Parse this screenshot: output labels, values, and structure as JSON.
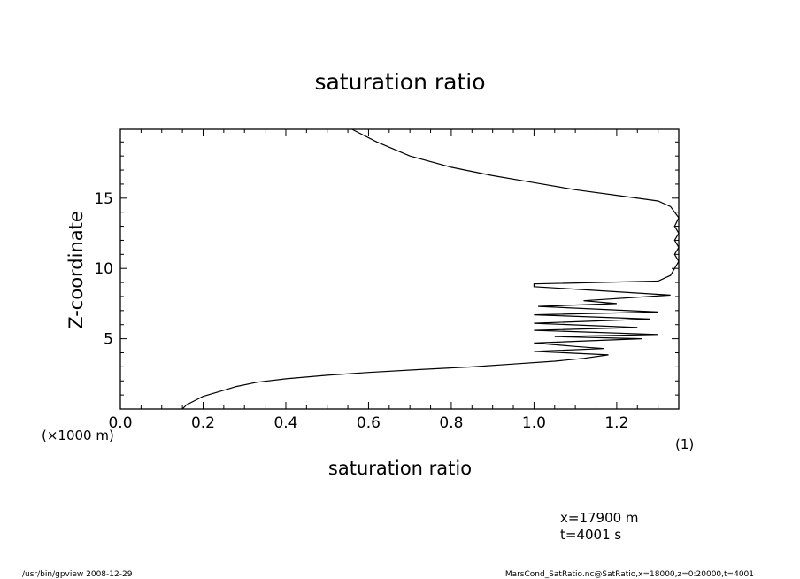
{
  "chart_data": {
    "type": "line",
    "title": "saturation ratio",
    "xlabel": "saturation ratio",
    "ylabel": "Z-coordinate",
    "x_unit_label": "(1)",
    "y_unit_label": "(×1000 m)",
    "xlim": [
      0.0,
      1.35
    ],
    "ylim": [
      0.0,
      19.9
    ],
    "x_ticks": [
      0.0,
      0.2,
      0.4,
      0.6,
      0.8,
      1.0,
      1.2
    ],
    "x_tick_labels": [
      "0.0",
      "0.2",
      "0.4",
      "0.6",
      "0.8",
      "1.0",
      "1.2"
    ],
    "y_ticks": [
      5,
      10,
      15
    ],
    "y_tick_labels": [
      "5",
      "10",
      "15"
    ],
    "grid": false,
    "series": [
      {
        "x": [
          0.15,
          0.16,
          0.18,
          0.2,
          0.24,
          0.28,
          0.33,
          0.4,
          0.5,
          0.6,
          0.72,
          0.85,
          0.95,
          1.05,
          1.12,
          1.18,
          1.0,
          1.17,
          1.1,
          1.0,
          1.26,
          1.05,
          1.3,
          1.0,
          1.25,
          1.0,
          1.28,
          1.0,
          1.3,
          1.01,
          1.2,
          1.12,
          1.33,
          1.0,
          1.0,
          1.3,
          1.33,
          1.34,
          1.35,
          1.34,
          1.35,
          1.34,
          1.35,
          1.34,
          1.35,
          1.33,
          1.3,
          1.2,
          1.1,
          1.0,
          0.9,
          0.8,
          0.7,
          0.62,
          0.56
        ],
        "y": [
          0.0,
          0.3,
          0.6,
          0.9,
          1.25,
          1.6,
          1.9,
          2.15,
          2.4,
          2.6,
          2.8,
          3.0,
          3.2,
          3.4,
          3.6,
          3.85,
          4.1,
          4.3,
          4.45,
          4.7,
          5.0,
          5.15,
          5.3,
          5.6,
          5.8,
          6.1,
          6.4,
          6.7,
          6.9,
          7.3,
          7.5,
          7.7,
          8.1,
          8.7,
          8.9,
          9.1,
          9.5,
          10.0,
          10.5,
          11.0,
          11.5,
          12.0,
          12.5,
          13.0,
          13.6,
          14.4,
          14.8,
          15.2,
          15.6,
          16.1,
          16.6,
          17.2,
          18.0,
          19.0,
          19.9
        ]
      }
    ]
  },
  "footer": {
    "coord_x": "x=17900  m",
    "coord_t": "t=4001  s",
    "program": "/usr/bin/gpview   2008-12-29",
    "source": "MarsCond_SatRatio.nc@SatRatio,x=18000,z=0:20000,t=4001"
  }
}
